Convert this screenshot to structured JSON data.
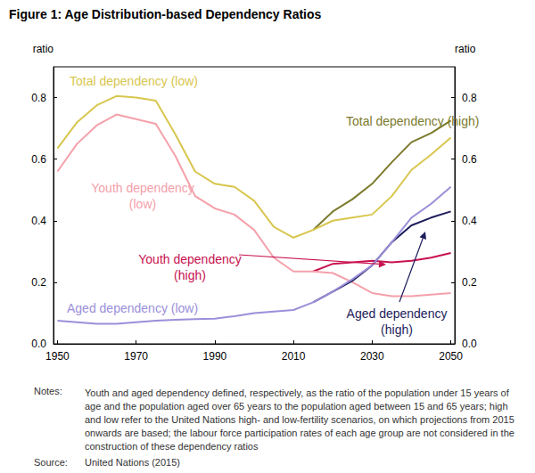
{
  "chart_data": {
    "type": "line",
    "title": "Figure 1: Age Distribution-based Dependency Ratios",
    "ylabel": "ratio",
    "y2label": "ratio",
    "x": [
      1950,
      1955,
      1960,
      1965,
      1970,
      1975,
      1980,
      1985,
      1990,
      1995,
      2000,
      2005,
      2010,
      2015,
      2020,
      2025,
      2030,
      2035,
      2040,
      2045,
      2050
    ],
    "xlim": [
      1949,
      2051
    ],
    "xticks": [
      1950,
      1970,
      1990,
      2010,
      2030,
      2050
    ],
    "ylim": [
      0,
      0.9
    ],
    "yticks": [
      {
        "value": 0,
        "label": "0.0"
      },
      0.2,
      0.4,
      0.6,
      0.8
    ],
    "y2lim": [
      0,
      0.9
    ],
    "y2ticks": [
      {
        "value": 0,
        "label": "0.0"
      },
      0.2,
      0.4,
      0.6,
      0.8
    ],
    "grid": false,
    "series": [
      {
        "name": "Total dependency (high)",
        "color": "#7b7a2c",
        "values": [
          null,
          null,
          null,
          null,
          null,
          null,
          null,
          null,
          null,
          null,
          null,
          null,
          null,
          0.37,
          0.43,
          0.47,
          0.52,
          0.59,
          0.655,
          0.685,
          0.725
        ]
      },
      {
        "name": "Total dependency (low)",
        "color": "#d8c64e",
        "values": [
          0.635,
          0.72,
          0.775,
          0.805,
          0.8,
          0.79,
          0.68,
          0.56,
          0.52,
          0.51,
          0.465,
          0.38,
          0.345,
          0.37,
          0.4,
          0.41,
          0.42,
          0.48,
          0.565,
          0.615,
          0.67
        ]
      },
      {
        "name": "Youth dependency (high)",
        "color": "#c8124f",
        "values": [
          null,
          null,
          null,
          null,
          null,
          null,
          null,
          null,
          null,
          null,
          null,
          null,
          null,
          0.235,
          0.26,
          0.265,
          0.27,
          0.265,
          0.27,
          0.28,
          0.295
        ]
      },
      {
        "name": "Youth dependency (low)",
        "color": "#f4a0aa",
        "values": [
          0.56,
          0.65,
          0.71,
          0.745,
          0.73,
          0.715,
          0.61,
          0.48,
          0.44,
          0.42,
          0.37,
          0.28,
          0.235,
          0.235,
          0.23,
          0.2,
          0.165,
          0.155,
          0.155,
          0.16,
          0.165
        ]
      },
      {
        "name": "Aged dependency (high)",
        "color": "#1e1d5c",
        "values": [
          null,
          null,
          null,
          null,
          null,
          null,
          null,
          null,
          null,
          null,
          null,
          null,
          null,
          0.135,
          0.17,
          0.205,
          0.255,
          0.33,
          0.385,
          0.41,
          0.43
        ]
      },
      {
        "name": "Aged dependency (low)",
        "color": "#9b8fda",
        "values": [
          0.075,
          0.07,
          0.065,
          0.065,
          0.07,
          0.075,
          0.078,
          0.08,
          0.082,
          0.09,
          0.1,
          0.105,
          0.11,
          0.135,
          0.17,
          0.21,
          0.255,
          0.33,
          0.41,
          0.455,
          0.51
        ]
      }
    ],
    "notes": {
      "label": "Notes:",
      "text": "Youth and aged dependency defined, respectively, as the ratio of the population under 15 years of age and the population aged over 65 years to the population aged between 15 and 65 years; high and low refer to the United Nations high- and low-fertility scenarios, on which projections from 2015 onwards are based; the labour force participation rates of each age group are not considered in the construction of these dependency ratios"
    },
    "source": {
      "label": "Source:",
      "text": "United Nations (2015)"
    }
  }
}
